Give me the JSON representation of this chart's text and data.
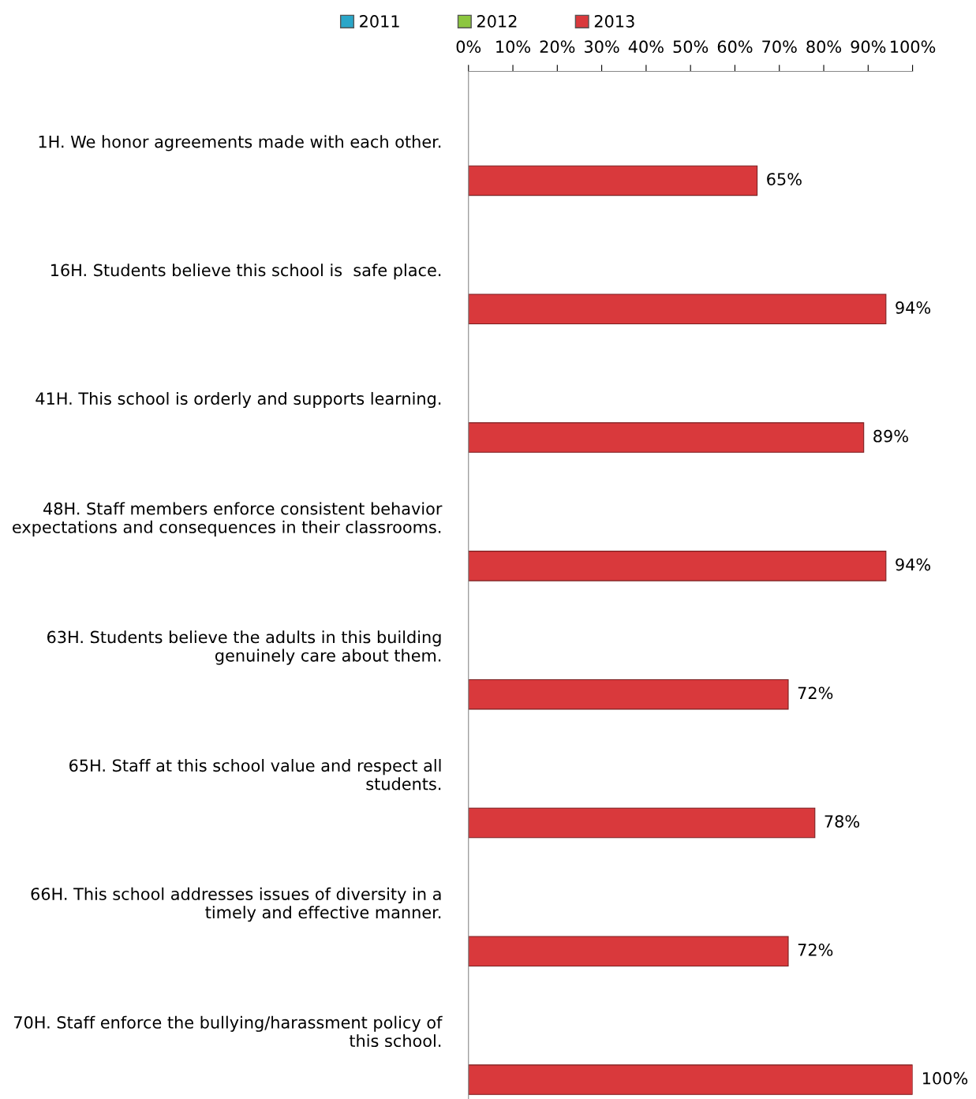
{
  "chart_data": {
    "type": "bar",
    "orientation": "horizontal",
    "legend": "top",
    "grid": false,
    "categories": [
      "1H. We honor agreements made with each other.",
      "16H. Students believe this school is  safe place.",
      "41H. This school is orderly and supports learning.",
      "48H. Staff members enforce consistent behavior expectations and consequences in their classrooms.",
      "63H. Students believe the adults in this building genuinely care about them.",
      "65H. Staff at this school value and respect all students.",
      "66H. This school addresses issues of diversity in a timely and effective manner.",
      "70H. Staff enforce the bullying/harassment policy of this school."
    ],
    "series": [
      {
        "name": "2011",
        "color": "#2aa6c8",
        "values": [
          null,
          null,
          null,
          null,
          null,
          null,
          null,
          null
        ]
      },
      {
        "name": "2012",
        "color": "#8cc63f",
        "values": [
          null,
          null,
          null,
          null,
          null,
          null,
          null,
          null
        ]
      },
      {
        "name": "2013",
        "color": "#d9393c",
        "values": [
          65,
          94,
          89,
          94,
          72,
          78,
          72,
          100
        ],
        "value_labels": [
          "65%",
          "94%",
          "89%",
          "94%",
          "72%",
          "78%",
          "72%",
          "100%"
        ]
      }
    ],
    "xlim": [
      0,
      100
    ],
    "xticks": [
      {
        "value": 0,
        "label": "0%"
      },
      {
        "value": 10,
        "label": "10%"
      },
      {
        "value": 20,
        "label": "20%"
      },
      {
        "value": 30,
        "label": "30%"
      },
      {
        "value": 40,
        "label": "40%"
      },
      {
        "value": 50,
        "label": "50%"
      },
      {
        "value": 60,
        "label": "60%"
      },
      {
        "value": 70,
        "label": "70%"
      },
      {
        "value": 80,
        "label": "80%"
      },
      {
        "value": 90,
        "label": "90%"
      },
      {
        "value": 100,
        "label": "100%"
      }
    ]
  }
}
